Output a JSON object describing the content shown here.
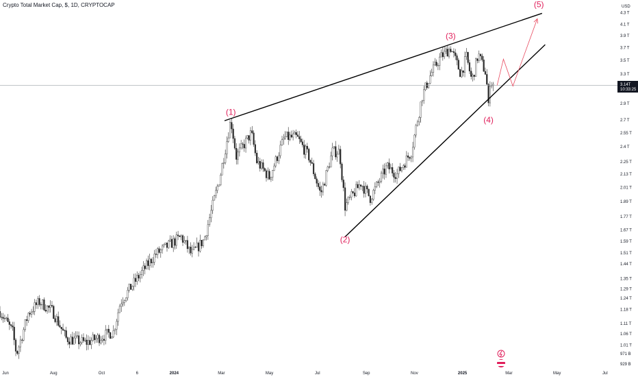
{
  "header": {
    "title": "Crypto Total Market Cap, $, 1D, CRYPTOCAP"
  },
  "axis": {
    "currency": "USD"
  },
  "current": {
    "price": "3.14T",
    "countdown": "10:33:25"
  },
  "colors": {
    "up": "#2d2d2d",
    "down": "#2d2d2d",
    "wave_label": "#e01e5a",
    "projection": "#e84a5f",
    "trendline": "#000000",
    "price_line": "#9aa0a6"
  },
  "chart_data": {
    "type": "candlestick",
    "title": "Crypto Total Market Cap, $, 1D, CRYPTOCAP",
    "x_range": [
      "2023-05-25",
      "2025-07-15"
    ],
    "y_scale": "log",
    "y_range": [
      0.905,
      4.45
    ],
    "y_unit": "T USD",
    "y_ticks": [
      {
        "value": 4.31,
        "label": "4.3 T"
      },
      {
        "value": 4.1,
        "label": "4.1 T"
      },
      {
        "value": 3.9,
        "label": "3.9 T"
      },
      {
        "value": 3.7,
        "label": "3.7 T"
      },
      {
        "value": 3.5,
        "label": "3.5 T"
      },
      {
        "value": 3.3,
        "label": "3.3 T"
      },
      {
        "value": 2.9,
        "label": "2.9 T"
      },
      {
        "value": 2.7,
        "label": "2.7 T"
      },
      {
        "value": 2.55,
        "label": "2.55 T"
      },
      {
        "value": 2.4,
        "label": "2.4 T"
      },
      {
        "value": 2.25,
        "label": "2.25 T"
      },
      {
        "value": 2.13,
        "label": "2.13 T"
      },
      {
        "value": 2.01,
        "label": "2.01 T"
      },
      {
        "value": 1.89,
        "label": "1.89 T"
      },
      {
        "value": 1.77,
        "label": "1.77 T"
      },
      {
        "value": 1.67,
        "label": "1.67 T"
      },
      {
        "value": 1.59,
        "label": "1.59 T"
      },
      {
        "value": 1.51,
        "label": "1.51 T"
      },
      {
        "value": 1.44,
        "label": "1.44 T"
      },
      {
        "value": 1.35,
        "label": "1.35 T"
      },
      {
        "value": 1.29,
        "label": "1.29 T"
      },
      {
        "value": 1.24,
        "label": "1.24 T"
      },
      {
        "value": 1.18,
        "label": "1.18 T"
      },
      {
        "value": 1.11,
        "label": "1.11 T"
      },
      {
        "value": 1.06,
        "label": "1.06 T"
      },
      {
        "value": 1.01,
        "label": "1.01 T"
      },
      {
        "value": 0.9718,
        "label": "971 B"
      },
      {
        "value": 0.9298,
        "label": "929 B"
      }
    ],
    "x_ticks": [
      {
        "date": "2023-06-01",
        "label": "Jun",
        "bold": false
      },
      {
        "date": "2023-08-01",
        "label": "Aug",
        "bold": false
      },
      {
        "date": "2023-10-01",
        "label": "Oct",
        "bold": false
      },
      {
        "date": "2023-11-15",
        "label": "6",
        "bold": false
      },
      {
        "date": "2024-01-01",
        "label": "2024",
        "bold": true
      },
      {
        "date": "2024-03-01",
        "label": "Mar",
        "bold": false
      },
      {
        "date": "2024-05-01",
        "label": "May",
        "bold": false
      },
      {
        "date": "2024-07-01",
        "label": "Jul",
        "bold": false
      },
      {
        "date": "2024-09-01",
        "label": "Sep",
        "bold": false
      },
      {
        "date": "2024-11-01",
        "label": "Nov",
        "bold": false
      },
      {
        "date": "2025-01-01",
        "label": "2025",
        "bold": true
      },
      {
        "date": "2025-03-01",
        "label": "Mar",
        "bold": false
      },
      {
        "date": "2025-05-01",
        "label": "May",
        "bold": false
      },
      {
        "date": "2025-07-01",
        "label": "Jul",
        "bold": false
      }
    ],
    "anchors": [
      {
        "date": "2023-05-25",
        "value": 1.17
      },
      {
        "date": "2023-06-10",
        "value": 1.07
      },
      {
        "date": "2023-06-15",
        "value": 0.97
      },
      {
        "date": "2023-06-30",
        "value": 1.16
      },
      {
        "date": "2023-07-14",
        "value": 1.22
      },
      {
        "date": "2023-07-31",
        "value": 1.17
      },
      {
        "date": "2023-08-17",
        "value": 1.04
      },
      {
        "date": "2023-09-11",
        "value": 1.02
      },
      {
        "date": "2023-09-25",
        "value": 1.04
      },
      {
        "date": "2023-10-16",
        "value": 1.07
      },
      {
        "date": "2023-10-25",
        "value": 1.22
      },
      {
        "date": "2023-11-15",
        "value": 1.35
      },
      {
        "date": "2023-12-08",
        "value": 1.5
      },
      {
        "date": "2024-01-10",
        "value": 1.62
      },
      {
        "date": "2024-01-23",
        "value": 1.5
      },
      {
        "date": "2024-02-08",
        "value": 1.6
      },
      {
        "date": "2024-02-28",
        "value": 2.1
      },
      {
        "date": "2024-03-13",
        "value": 2.7
      },
      {
        "date": "2024-03-20",
        "value": 2.3
      },
      {
        "date": "2024-04-08",
        "value": 2.55
      },
      {
        "date": "2024-04-15",
        "value": 2.25
      },
      {
        "date": "2024-05-01",
        "value": 2.1
      },
      {
        "date": "2024-05-20",
        "value": 2.5
      },
      {
        "date": "2024-06-05",
        "value": 2.5
      },
      {
        "date": "2024-06-20",
        "value": 2.3
      },
      {
        "date": "2024-07-05",
        "value": 1.95
      },
      {
        "date": "2024-07-20",
        "value": 2.35
      },
      {
        "date": "2024-07-29",
        "value": 2.35
      },
      {
        "date": "2024-08-05",
        "value": 1.85
      },
      {
        "date": "2024-08-25",
        "value": 2.05
      },
      {
        "date": "2024-09-06",
        "value": 1.92
      },
      {
        "date": "2024-09-27",
        "value": 2.2
      },
      {
        "date": "2024-10-10",
        "value": 2.13
      },
      {
        "date": "2024-10-28",
        "value": 2.35
      },
      {
        "date": "2024-11-11",
        "value": 3.0
      },
      {
        "date": "2024-11-22",
        "value": 3.3
      },
      {
        "date": "2024-12-04",
        "value": 3.55
      },
      {
        "date": "2024-12-17",
        "value": 3.7
      },
      {
        "date": "2024-12-30",
        "value": 3.3
      },
      {
        "date": "2025-01-06",
        "value": 3.55
      },
      {
        "date": "2025-01-13",
        "value": 3.2
      },
      {
        "date": "2025-01-21",
        "value": 3.6
      },
      {
        "date": "2025-01-31",
        "value": 3.3
      },
      {
        "date": "2025-02-03",
        "value": 2.85
      },
      {
        "date": "2025-02-05",
        "value": 3.2
      },
      {
        "date": "2025-02-10",
        "value": 3.14
      }
    ],
    "wave_points": [
      {
        "label": "(1)",
        "date": "2024-03-13",
        "value": 2.76,
        "placement": "above"
      },
      {
        "label": "(2)",
        "date": "2024-08-05",
        "value": 1.63,
        "placement": "below"
      },
      {
        "label": "(3)",
        "date": "2024-12-17",
        "value": 3.85,
        "placement": "above"
      },
      {
        "label": "(4)",
        "date": "2025-02-03",
        "value": 2.75,
        "placement": "below"
      },
      {
        "label": "(5)",
        "date": "2025-04-08",
        "value": 4.42,
        "placement": "above"
      }
    ],
    "trendlines": [
      {
        "name": "upper",
        "from": {
          "date": "2024-03-05",
          "value": 2.69
        },
        "to": {
          "date": "2025-04-12",
          "value": 4.3
        }
      },
      {
        "name": "lower",
        "from": {
          "date": "2024-08-05",
          "value": 1.62
        },
        "to": {
          "date": "2025-04-16",
          "value": 3.75
        }
      }
    ],
    "projection": [
      {
        "date": "2025-02-14",
        "value": 3.14
      },
      {
        "date": "2025-02-22",
        "value": 3.52
      },
      {
        "date": "2025-03-06",
        "value": 3.13
      },
      {
        "date": "2025-04-06",
        "value": 4.2
      }
    ],
    "last_price": 3.14
  }
}
